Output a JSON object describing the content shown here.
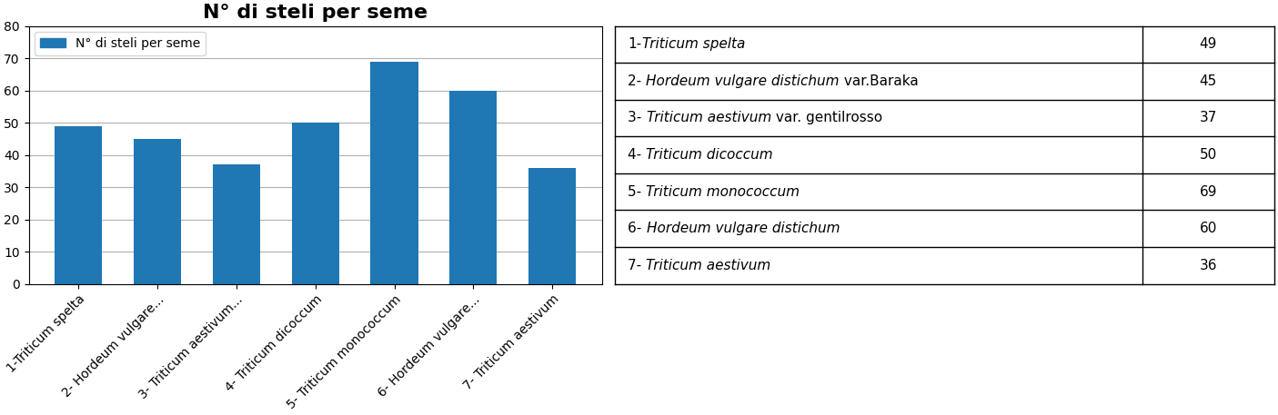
{
  "chart_data": [
    {
      "type": "bar",
      "title": "N° di steli per seme",
      "categories": [
        "1-Triticum spelta",
        "2- Hordeum vulgare...",
        "3- Triticum aestivum...",
        "4- Triticum dicoccum",
        "5- Triticum monococcum",
        "6- Hordeum vulgare...",
        "7- Triticum aestivum"
      ],
      "series": [
        {
          "name": "N° di steli per seme",
          "values": [
            49,
            45,
            37,
            50,
            69,
            60,
            36
          ]
        }
      ],
      "ylim": [
        0,
        80
      ],
      "yticks": [
        0,
        10,
        20,
        30,
        40,
        50,
        60,
        70,
        80
      ],
      "grid": true,
      "legend": "upper left"
    },
    {
      "type": "table",
      "rows": [
        [
          "1-",
          "Triticum spelta"
        ],
        [
          "2- ",
          "Hordeum vulgare distichum",
          " var.Baraka"
        ],
        [
          "3- ",
          "Triticum aestivum",
          " var. gentilrosso"
        ],
        [
          "4- ",
          "Triticum dicoccum"
        ],
        [
          "5- ",
          "Triticum monococcum"
        ],
        [
          "6- ",
          "Hordeum vulgare distichum"
        ],
        [
          "7- ",
          "Triticum aestivum"
        ]
      ],
      "values": [
        49,
        45,
        37,
        50,
        69,
        60,
        36
      ]
    }
  ]
}
